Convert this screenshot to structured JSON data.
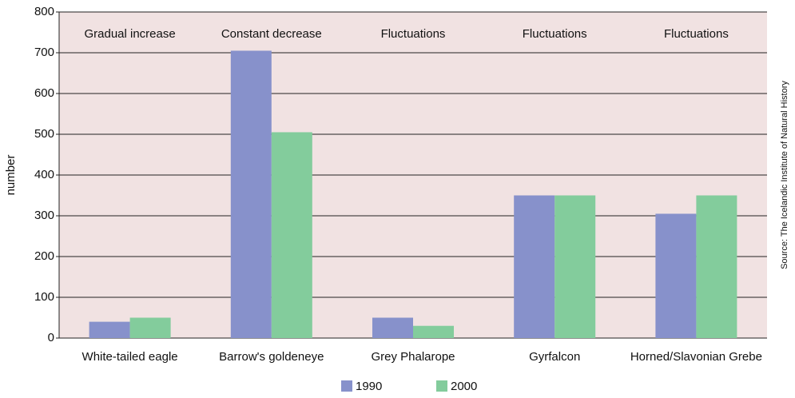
{
  "chart_data": {
    "type": "bar",
    "y_label": "number",
    "source": "Source: The Icelandic Institute of  Natural History",
    "categories": [
      "White-tailed eagle",
      "Barrow's goldeneye",
      "Grey Phalarope",
      "Gyrfalcon",
      "Horned/Slavonian Grebe"
    ],
    "annotations": [
      "Gradual increase",
      "Constant decrease",
      "Fluctuations",
      "Fluctuations",
      "Fluctuations"
    ],
    "series": [
      {
        "name": "1990",
        "color": "#8791cb",
        "values": [
          40,
          705,
          50,
          350,
          305
        ]
      },
      {
        "name": "2000",
        "color": "#83cc9c",
        "values": [
          50,
          505,
          30,
          350,
          350
        ]
      }
    ],
    "ylim": [
      0,
      800
    ],
    "yticks": [
      0,
      100,
      200,
      300,
      400,
      500,
      600,
      700,
      800
    ],
    "grid": true,
    "legend": "bottom",
    "plot_background": "#f1e2e2"
  }
}
